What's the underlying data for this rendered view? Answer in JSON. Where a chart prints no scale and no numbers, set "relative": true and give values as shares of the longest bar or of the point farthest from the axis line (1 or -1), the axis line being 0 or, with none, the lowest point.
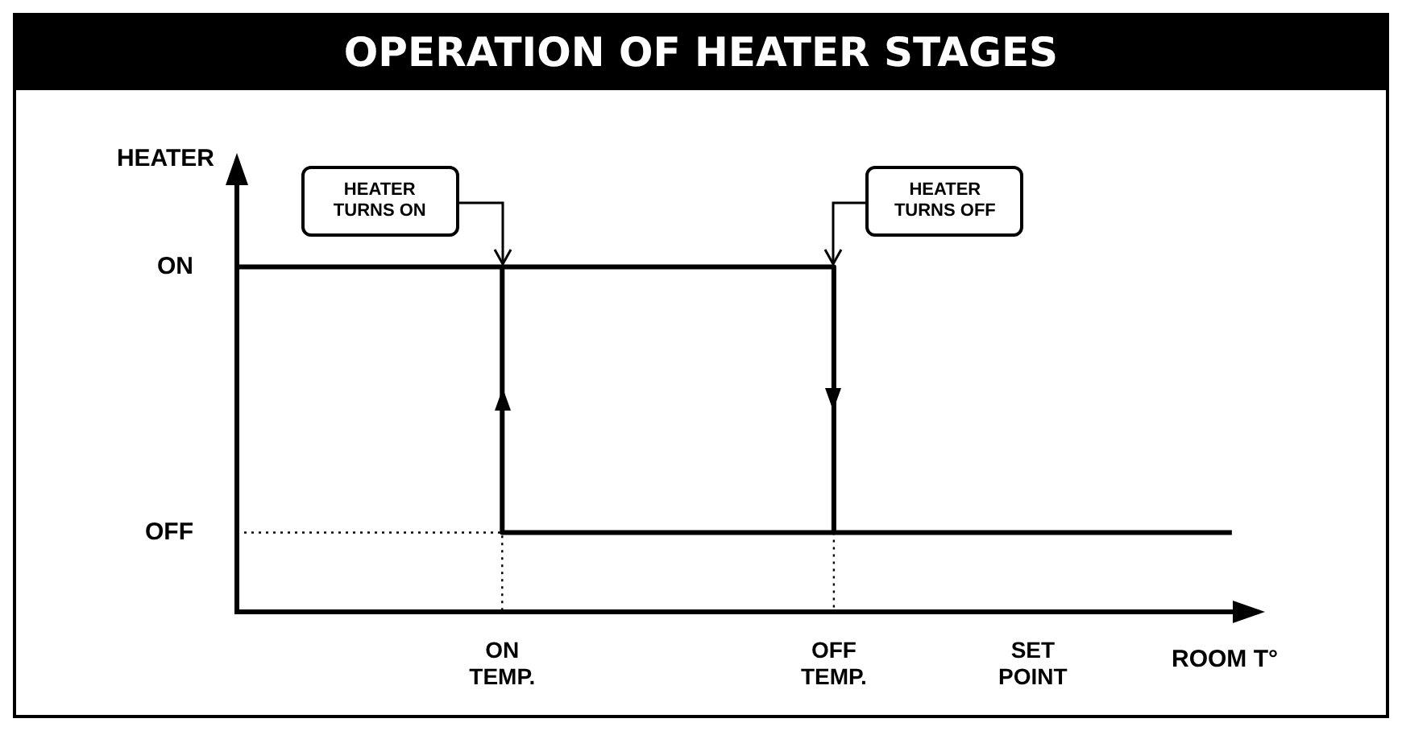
{
  "chart_data": {
    "type": "step",
    "title": "OPERATION OF HEATER STAGES",
    "xlabel": "ROOM T°",
    "ylabel": "HEATER",
    "relative": true,
    "categories": [
      null,
      null,
      null,
      null,
      null,
      null,
      null,
      null,
      "ON TEMP.",
      null,
      null,
      null,
      null,
      null,
      null,
      null,
      null,
      null,
      "OFF TEMP.",
      null,
      null,
      null,
      null,
      null,
      "SET POINT",
      null,
      null,
      null,
      null,
      null,
      null,
      null
    ],
    "series": [
      {
        "color": "#000000",
        "values": [
          1,
          1,
          1,
          1,
          1,
          1,
          1,
          1,
          1,
          1,
          1,
          1,
          1,
          1,
          1,
          1,
          1,
          1,
          0.23,
          null,
          null,
          null,
          null,
          null,
          null,
          null,
          null,
          null,
          null,
          null,
          null,
          null
        ]
      },
      {
        "color": "#000000",
        "values": [
          null,
          null,
          null,
          null,
          null,
          null,
          null,
          null,
          1,
          0.23,
          0.23,
          0.23,
          0.23,
          0.23,
          0.23,
          0.23,
          0.23,
          0.23,
          0.23,
          0.23,
          0.23,
          0.23,
          0.23,
          0.23,
          0.23,
          0.23,
          0.23,
          0.23,
          0.23,
          0.23,
          0.23,
          null
        ]
      },
      {
        "color": "#000000",
        "line_style": "dotted",
        "values": [
          0.23,
          0.23,
          0.23,
          0.23,
          0.23,
          0.23,
          0.23,
          0.23,
          0,
          null,
          null,
          null,
          null,
          null,
          null,
          null,
          null,
          null,
          null,
          null,
          null,
          null,
          null,
          null,
          null,
          null,
          null,
          null,
          null,
          null,
          null,
          null
        ]
      },
      {
        "color": "#000000",
        "line_style": "dotted",
        "values": [
          null,
          null,
          null,
          null,
          null,
          null,
          null,
          null,
          null,
          null,
          null,
          null,
          null,
          null,
          null,
          null,
          null,
          null,
          0.23,
          0,
          null,
          null,
          null,
          null,
          null,
          null,
          null,
          null,
          null,
          null,
          null,
          null
        ]
      }
    ],
    "annotations": [
      "ON",
      "OFF",
      "HEATER TURNS ON",
      "HEATER TURNS OFF"
    ]
  }
}
